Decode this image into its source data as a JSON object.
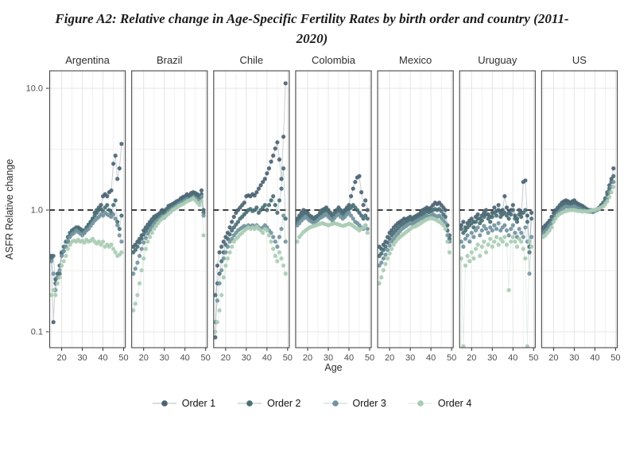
{
  "figure": {
    "title_line1": "Figure A2: Relative change in Age-Specific Fertility Rates by birth order and country  (2011-",
    "title_line2": "2020)"
  },
  "chart_data": {
    "type": "scatter",
    "facets": [
      "Argentina",
      "Brazil",
      "Chile",
      "Colombia",
      "Mexico",
      "Uruguay",
      "US"
    ],
    "xlabel": "Age",
    "ylabel": "ASFR Relative change",
    "x_ticks": [
      20,
      30,
      40,
      50
    ],
    "x_gridlines_minor": [
      15,
      25,
      35,
      45
    ],
    "y_ticks": [
      10.0,
      1.0,
      0.1
    ],
    "y_tick_labels": [
      "10.0",
      "1.0",
      "0.1"
    ],
    "y_scale": "log10",
    "xlim": [
      14,
      51
    ],
    "ylim": [
      0.073,
      14
    ],
    "reference_line_y": 1.0,
    "grid": true,
    "legend_position": "bottom",
    "ages": [
      15,
      16,
      17,
      18,
      19,
      20,
      21,
      22,
      23,
      24,
      25,
      26,
      27,
      28,
      29,
      30,
      31,
      32,
      33,
      34,
      35,
      36,
      37,
      38,
      39,
      40,
      41,
      42,
      43,
      44,
      45,
      46,
      47,
      48,
      49
    ],
    "series": [
      {
        "name": "Order 1",
        "color": "#4d6373",
        "values": {
          "Argentina": [
            0.42,
            0.12,
            0.27,
            0.28,
            0.3,
            0.44,
            0.46,
            0.5,
            0.55,
            0.62,
            0.67,
            0.68,
            0.7,
            0.72,
            0.7,
            0.68,
            0.65,
            0.7,
            0.75,
            0.8,
            0.85,
            0.95,
            1.0,
            1.05,
            1.1,
            1.3,
            1.35,
            1.3,
            1.4,
            1.45,
            2.4,
            2.8,
            1.8,
            2.2,
            3.5
          ],
          "Brazil": [
            0.5,
            0.52,
            0.55,
            0.58,
            0.62,
            0.68,
            0.72,
            0.76,
            0.8,
            0.84,
            0.88,
            0.9,
            0.92,
            0.95,
            1.0,
            0.95,
            1.02,
            1.08,
            1.1,
            1.12,
            1.15,
            1.18,
            1.2,
            1.25,
            1.28,
            1.3,
            1.35,
            1.32,
            1.38,
            1.4,
            1.38,
            1.35,
            1.3,
            1.45,
            1.0
          ],
          "Chile": [
            0.09,
            0.35,
            0.45,
            0.5,
            0.55,
            0.6,
            0.65,
            0.72,
            0.8,
            0.88,
            0.95,
            1.0,
            1.05,
            1.1,
            1.15,
            1.3,
            1.32,
            1.3,
            1.35,
            1.32,
            1.4,
            1.5,
            1.6,
            1.7,
            1.8,
            2.0,
            2.2,
            2.5,
            2.8,
            3.2,
            3.6,
            2.6,
            1.8,
            4.0,
            11.0
          ],
          "Colombia": [
            0.85,
            0.9,
            0.95,
            1.0,
            0.98,
            0.95,
            0.9,
            0.88,
            0.85,
            0.88,
            0.9,
            0.95,
            1.0,
            1.02,
            1.05,
            1.0,
            0.95,
            0.9,
            0.95,
            1.0,
            1.05,
            1.0,
            0.95,
            1.0,
            1.05,
            1.1,
            1.3,
            1.5,
            1.7,
            1.85,
            1.9,
            1.4,
            1.1,
            1.2,
            1.0
          ],
          "Mexico": [
            0.5,
            0.48,
            0.52,
            0.55,
            0.6,
            0.65,
            0.68,
            0.72,
            0.75,
            0.78,
            0.8,
            0.82,
            0.85,
            0.84,
            0.86,
            0.88,
            0.85,
            0.88,
            0.9,
            0.92,
            0.95,
            1.0,
            1.02,
            1.05,
            1.02,
            1.05,
            1.1,
            1.15,
            1.12,
            1.15,
            1.1,
            1.05,
            1.0,
            0.75,
            0.62
          ],
          "Uruguay": [
            0.75,
            0.8,
            0.72,
            0.78,
            0.82,
            0.85,
            0.8,
            0.88,
            0.92,
            0.85,
            0.9,
            0.95,
            1.0,
            0.92,
            0.88,
            0.95,
            1.05,
            0.98,
            1.1,
            0.95,
            1.0,
            1.3,
            1.05,
            0.95,
            1.0,
            1.1,
            0.9,
            0.85,
            1.0,
            0.95,
            1.7,
            1.75,
            0.9,
            0.5,
            0.95
          ],
          "US": [
            0.72,
            0.75,
            0.78,
            0.82,
            0.88,
            0.95,
            1.0,
            1.05,
            1.1,
            1.15,
            1.18,
            1.2,
            1.18,
            1.15,
            1.18,
            1.2,
            1.15,
            1.12,
            1.1,
            1.08,
            1.05,
            1.02,
            1.0,
            1.0,
            0.98,
            1.0,
            1.02,
            1.05,
            1.1,
            1.15,
            1.25,
            1.4,
            1.6,
            1.8,
            2.2
          ]
        }
      },
      {
        "name": "Order 2",
        "color": "#4a7076",
        "values": {
          "Argentina": [
            0.4,
            0.42,
            0.25,
            0.3,
            0.35,
            0.45,
            0.5,
            0.55,
            0.6,
            0.65,
            0.68,
            0.7,
            0.72,
            0.7,
            0.68,
            0.66,
            0.68,
            0.72,
            0.76,
            0.8,
            0.85,
            0.9,
            0.95,
            1.0,
            1.02,
            0.98,
            1.05,
            1.1,
            1.0,
            0.95,
            1.1,
            1.2,
            0.8,
            0.7,
            0.9
          ],
          "Brazil": [
            0.45,
            0.47,
            0.5,
            0.54,
            0.58,
            0.63,
            0.67,
            0.71,
            0.75,
            0.79,
            0.83,
            0.86,
            0.89,
            0.92,
            0.95,
            0.92,
            0.98,
            1.03,
            1.06,
            1.08,
            1.1,
            1.13,
            1.16,
            1.2,
            1.22,
            1.25,
            1.28,
            1.26,
            1.3,
            1.33,
            1.3,
            1.28,
            1.24,
            1.35,
            0.95
          ],
          "Chile": [
            0.2,
            0.25,
            0.3,
            0.38,
            0.45,
            0.52,
            0.58,
            0.63,
            0.68,
            0.72,
            0.76,
            0.8,
            0.85,
            0.88,
            0.92,
            0.96,
            1.0,
            1.02,
            0.98,
            1.0,
            1.05,
            0.95,
            1.0,
            1.05,
            1.1,
            1.0,
            1.1,
            1.2,
            1.3,
            1.1,
            0.95,
            1.2,
            1.5,
            2.2,
            0.85
          ],
          "Colombia": [
            0.8,
            0.85,
            0.88,
            0.92,
            0.95,
            0.9,
            0.86,
            0.84,
            0.82,
            0.85,
            0.88,
            0.92,
            0.95,
            0.98,
            1.0,
            0.95,
            0.9,
            0.87,
            0.92,
            0.96,
            1.0,
            0.95,
            0.9,
            0.95,
            1.0,
            1.02,
            1.05,
            1.1,
            1.05,
            1.0,
            0.95,
            0.9,
            0.85,
            0.9,
            0.85
          ],
          "Mexico": [
            0.42,
            0.44,
            0.47,
            0.5,
            0.54,
            0.58,
            0.62,
            0.65,
            0.68,
            0.71,
            0.74,
            0.76,
            0.78,
            0.8,
            0.82,
            0.84,
            0.82,
            0.84,
            0.86,
            0.88,
            0.9,
            0.92,
            0.95,
            0.98,
            0.96,
            0.98,
            1.0,
            1.02,
            1.0,
            1.02,
            0.98,
            0.92,
            0.88,
            0.68,
            0.58
          ],
          "Uruguay": [
            0.7,
            0.65,
            0.68,
            0.72,
            0.75,
            0.78,
            0.72,
            0.8,
            0.85,
            0.78,
            0.82,
            0.88,
            0.92,
            0.85,
            0.8,
            0.88,
            0.95,
            0.9,
            1.0,
            0.88,
            0.92,
            0.95,
            0.9,
            0.85,
            0.92,
            1.0,
            0.85,
            0.8,
            0.92,
            0.88,
            0.95,
            1.0,
            0.8,
            0.45,
            0.85
          ],
          "US": [
            0.68,
            0.7,
            0.73,
            0.77,
            0.82,
            0.88,
            0.94,
            0.99,
            1.04,
            1.08,
            1.11,
            1.13,
            1.12,
            1.1,
            1.12,
            1.13,
            1.1,
            1.08,
            1.06,
            1.04,
            1.02,
            1.0,
            0.98,
            0.98,
            0.97,
            0.99,
            1.0,
            1.03,
            1.07,
            1.12,
            1.2,
            1.35,
            1.5,
            1.7,
            1.9
          ]
        }
      },
      {
        "name": "Order 3",
        "color": "#73949f",
        "values": {
          "Argentina": [
            0.38,
            0.3,
            0.22,
            0.28,
            0.32,
            0.42,
            0.46,
            0.5,
            0.56,
            0.6,
            0.63,
            0.65,
            0.68,
            0.66,
            0.64,
            0.62,
            0.65,
            0.68,
            0.7,
            0.74,
            0.78,
            0.82,
            0.85,
            0.88,
            0.92,
            0.9,
            0.95,
            0.92,
            0.9,
            0.88,
            0.92,
            0.85,
            0.75,
            0.62,
            0.55
          ],
          "Brazil": [
            0.3,
            0.33,
            0.37,
            0.42,
            0.48,
            0.54,
            0.59,
            0.64,
            0.68,
            0.72,
            0.76,
            0.8,
            0.83,
            0.86,
            0.89,
            0.87,
            0.92,
            0.97,
            1.0,
            1.03,
            1.06,
            1.09,
            1.12,
            1.15,
            1.17,
            1.2,
            1.23,
            1.21,
            1.25,
            1.28,
            1.25,
            1.22,
            1.18,
            1.28,
            0.9
          ],
          "Chile": [
            0.12,
            0.18,
            0.25,
            0.32,
            0.4,
            0.45,
            0.5,
            0.55,
            0.58,
            0.62,
            0.65,
            0.68,
            0.7,
            0.72,
            0.74,
            0.72,
            0.75,
            0.73,
            0.75,
            0.72,
            0.75,
            0.72,
            0.7,
            0.72,
            0.75,
            0.72,
            0.68,
            0.65,
            0.6,
            0.55,
            0.5,
            0.6,
            0.7,
            0.9,
            0.55
          ],
          "Colombia": [
            0.75,
            0.78,
            0.82,
            0.85,
            0.88,
            0.85,
            0.82,
            0.8,
            0.78,
            0.8,
            0.83,
            0.86,
            0.88,
            0.9,
            0.92,
            0.88,
            0.85,
            0.82,
            0.86,
            0.9,
            0.92,
            0.88,
            0.85,
            0.88,
            0.92,
            0.95,
            0.9,
            0.85,
            0.8,
            0.78,
            0.75,
            0.72,
            0.7,
            0.75,
            0.7
          ],
          "Mexico": [
            0.35,
            0.37,
            0.4,
            0.43,
            0.47,
            0.51,
            0.55,
            0.58,
            0.61,
            0.64,
            0.67,
            0.7,
            0.72,
            0.74,
            0.76,
            0.78,
            0.77,
            0.79,
            0.81,
            0.83,
            0.85,
            0.86,
            0.88,
            0.9,
            0.88,
            0.9,
            0.92,
            0.9,
            0.88,
            0.9,
            0.86,
            0.82,
            0.78,
            0.62,
            0.55
          ],
          "Uruguay": [
            0.55,
            0.5,
            0.58,
            0.62,
            0.55,
            0.65,
            0.6,
            0.68,
            0.72,
            0.62,
            0.68,
            0.74,
            0.7,
            0.65,
            0.72,
            0.68,
            0.75,
            0.7,
            0.78,
            0.68,
            0.72,
            0.75,
            0.68,
            0.62,
            0.7,
            0.75,
            0.65,
            0.6,
            0.7,
            0.65,
            0.6,
            0.72,
            0.55,
            0.3,
            0.6
          ],
          "US": [
            0.65,
            0.67,
            0.7,
            0.74,
            0.78,
            0.84,
            0.89,
            0.94,
            0.98,
            1.02,
            1.05,
            1.07,
            1.06,
            1.05,
            1.06,
            1.07,
            1.05,
            1.03,
            1.02,
            1.0,
            0.99,
            0.98,
            0.97,
            0.97,
            0.96,
            0.98,
            1.0,
            1.02,
            1.05,
            1.08,
            1.15,
            1.25,
            1.4,
            1.55,
            1.7
          ]
        }
      },
      {
        "name": "Order 4",
        "color": "#a9ccb4",
        "values": {
          "Argentina": [
            0.2,
            0.22,
            0.2,
            0.25,
            0.28,
            0.35,
            0.38,
            0.42,
            0.48,
            0.52,
            0.55,
            0.56,
            0.55,
            0.57,
            0.55,
            0.56,
            0.54,
            0.57,
            0.55,
            0.56,
            0.58,
            0.55,
            0.53,
            0.55,
            0.52,
            0.55,
            0.5,
            0.52,
            0.5,
            0.52,
            0.48,
            0.45,
            0.42,
            0.43,
            0.45
          ],
          "Brazil": [
            0.15,
            0.17,
            0.2,
            0.25,
            0.32,
            0.4,
            0.48,
            0.55,
            0.6,
            0.65,
            0.7,
            0.74,
            0.78,
            0.82,
            0.85,
            0.88,
            0.9,
            0.93,
            0.96,
            1.0,
            1.02,
            1.05,
            1.08,
            1.1,
            1.12,
            1.15,
            1.18,
            1.2,
            1.22,
            1.25,
            1.2,
            1.15,
            1.1,
            1.18,
            0.62
          ],
          "Chile": [
            0.1,
            0.12,
            0.15,
            0.2,
            0.28,
            0.35,
            0.4,
            0.45,
            0.5,
            0.55,
            0.58,
            0.6,
            0.63,
            0.65,
            0.68,
            0.7,
            0.72,
            0.7,
            0.72,
            0.7,
            0.73,
            0.7,
            0.68,
            0.65,
            0.7,
            0.68,
            0.62,
            0.55,
            0.48,
            0.42,
            0.38,
            0.45,
            0.4,
            0.35,
            0.3
          ],
          "Colombia": [
            0.55,
            0.6,
            0.63,
            0.66,
            0.68,
            0.7,
            0.72,
            0.73,
            0.74,
            0.75,
            0.76,
            0.77,
            0.78,
            0.77,
            0.76,
            0.75,
            0.76,
            0.77,
            0.78,
            0.77,
            0.76,
            0.75,
            0.74,
            0.75,
            0.76,
            0.77,
            0.76,
            0.74,
            0.72,
            0.7,
            0.68,
            0.7,
            0.72,
            0.75,
            0.65
          ],
          "Mexico": [
            0.25,
            0.28,
            0.32,
            0.36,
            0.4,
            0.44,
            0.48,
            0.52,
            0.55,
            0.58,
            0.6,
            0.62,
            0.64,
            0.66,
            0.68,
            0.7,
            0.72,
            0.73,
            0.74,
            0.76,
            0.78,
            0.8,
            0.82,
            0.84,
            0.85,
            0.86,
            0.85,
            0.84,
            0.82,
            0.8,
            0.78,
            0.75,
            0.7,
            0.55,
            0.45
          ],
          "Uruguay": [
            0.4,
            0.076,
            0.35,
            0.42,
            0.38,
            0.45,
            0.4,
            0.48,
            0.52,
            0.42,
            0.5,
            0.55,
            0.45,
            0.52,
            0.58,
            0.5,
            0.55,
            0.6,
            0.52,
            0.58,
            0.55,
            0.6,
            0.52,
            0.22,
            0.55,
            0.6,
            0.55,
            0.5,
            0.58,
            0.55,
            0.48,
            0.4,
            0.076,
            0.55,
            0.5
          ],
          "US": [
            0.6,
            0.62,
            0.65,
            0.68,
            0.72,
            0.8,
            0.85,
            0.9,
            0.93,
            0.95,
            0.97,
            0.98,
            0.99,
            1.0,
            1.0,
            1.0,
            0.99,
            0.98,
            0.98,
            0.97,
            0.98,
            0.97,
            0.98,
            0.99,
            1.0,
            1.0,
            1.02,
            1.03,
            1.05,
            1.08,
            1.12,
            1.18,
            1.28,
            1.4,
            1.55
          ]
        }
      }
    ]
  }
}
